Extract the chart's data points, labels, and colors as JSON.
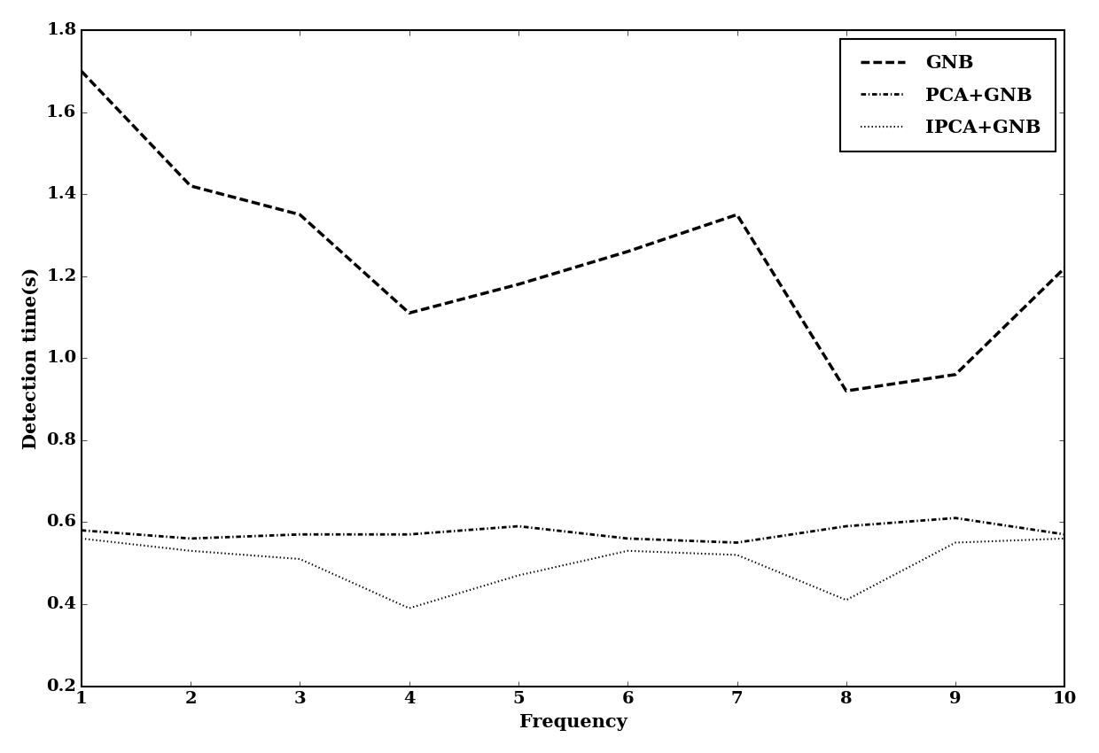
{
  "x": [
    1,
    2,
    3,
    4,
    5,
    6,
    7,
    8,
    9,
    10
  ],
  "gnb": [
    1.7,
    1.42,
    1.35,
    1.11,
    1.18,
    1.26,
    1.35,
    0.92,
    0.96,
    1.22
  ],
  "pca_gnb": [
    0.58,
    0.56,
    0.57,
    0.57,
    0.59,
    0.56,
    0.55,
    0.59,
    0.61,
    0.57
  ],
  "ipca_gnb": [
    0.56,
    0.53,
    0.51,
    0.39,
    0.47,
    0.53,
    0.52,
    0.41,
    0.55,
    0.56
  ],
  "xlabel": "Frequency",
  "ylabel": "Detection time(s)",
  "ylim": [
    0.2,
    1.8
  ],
  "xlim": [
    1,
    10
  ],
  "legend_gnb": "GNB",
  "legend_pca_gnb": "PCA+GNB",
  "legend_ipca_gnb": "IPCA+GNB",
  "background_color": "#ffffff",
  "line_color": "#000000",
  "label_fontsize": 15,
  "tick_fontsize": 14,
  "legend_fontsize": 15,
  "linewidth_gnb": 2.5,
  "linewidth_pca": 2.0,
  "linewidth_ipca": 1.5
}
